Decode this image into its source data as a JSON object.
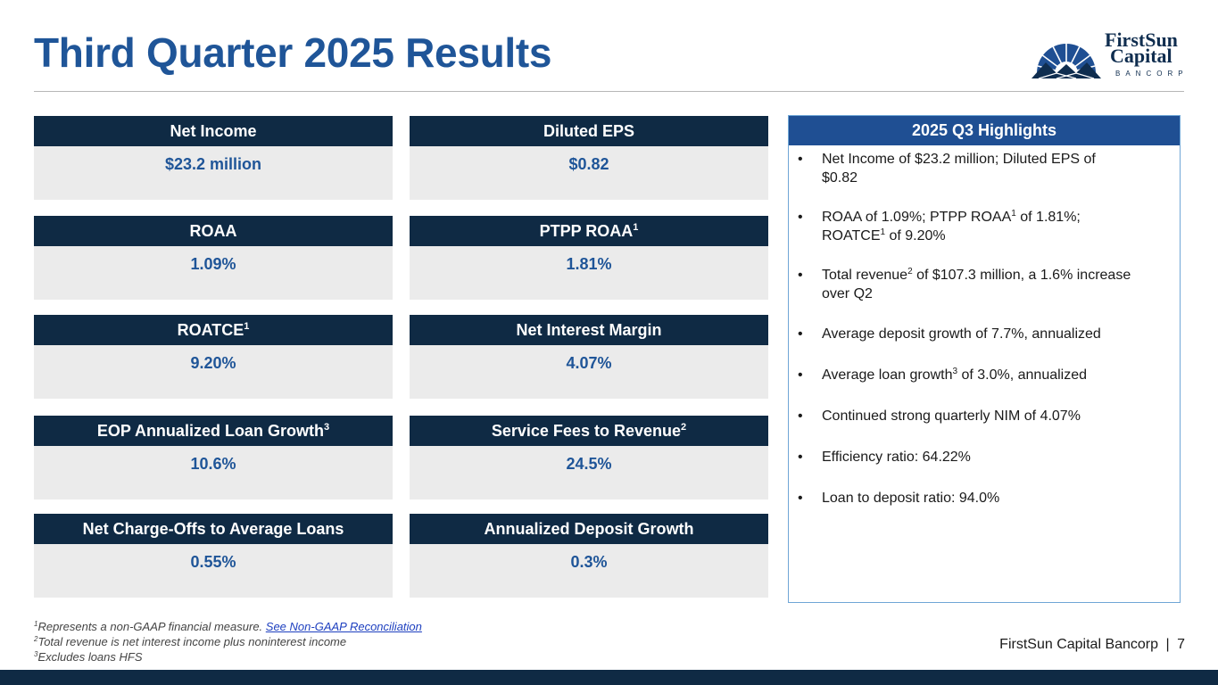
{
  "title": "Third Quarter 2025 Results",
  "logo": {
    "line1": "FirstSun",
    "line2": "Capital",
    "line3": "BANCORP"
  },
  "metrics": {
    "net_income": {
      "label": "Net Income",
      "value": "$23.2 million"
    },
    "diluted_eps": {
      "label": "Diluted EPS",
      "value": "$0.82"
    },
    "roaa": {
      "label": "ROAA",
      "value": "1.09%"
    },
    "ptpp_roaa": {
      "label": "PTPP ROAA",
      "sup": "1",
      "value": "1.81%"
    },
    "roatce": {
      "label": "ROATCE",
      "sup": "1",
      "value": "9.20%"
    },
    "nim": {
      "label": "Net Interest Margin",
      "value": "4.07%"
    },
    "eop_loan_growth": {
      "label": "EOP Annualized Loan Growth",
      "sup": "3",
      "value": "10.6%"
    },
    "service_fees": {
      "label": "Service Fees to Revenue",
      "sup": "2",
      "value": "24.5%"
    },
    "net_chargeoffs": {
      "label": "Net Charge-Offs to Average Loans",
      "value": "0.55%"
    },
    "deposit_growth": {
      "label": "Annualized Deposit Growth",
      "value": "0.3%"
    }
  },
  "highlights": {
    "title": "2025 Q3 Highlights",
    "bullet": "•",
    "b1": "Net Income of $23.2 million; Diluted EPS of $0.82",
    "b2": {
      "a": "ROAA of 1.09%; PTPP ROAA",
      "s1": "1",
      "b": " of 1.81%; ROATCE",
      "s2": "1",
      "c": " of 9.20%"
    },
    "b3": {
      "a": "Total revenue",
      "s1": "2",
      "b": " of $107.3 million, a 1.6% increase over Q2"
    },
    "b4": "Average deposit growth of 7.7%, annualized",
    "b5": {
      "a": "Average loan growth",
      "s1": "3",
      "b": " of 3.0%, annualized"
    },
    "b6": "Continued strong quarterly NIM of 4.07%",
    "b7": "Efficiency ratio: 64.22%",
    "b8": "Loan to deposit ratio: 94.0%"
  },
  "footnotes": {
    "f1": {
      "num": "1",
      "text": "Represents a non-GAAP financial measure. ",
      "link": "See Non-GAAP Reconciliation"
    },
    "f2": {
      "num": "2",
      "text": "Total revenue is net interest income plus noninterest income"
    },
    "f3": {
      "num": "3",
      "text": "Excludes loans HFS"
    }
  },
  "footer": {
    "brand": "FirstSun Capital Bancorp",
    "separator": "|",
    "page": "7"
  },
  "colors": {
    "title_blue": "#1f5598",
    "navy": "#0f2a44",
    "highlight_header": "#1f4f93",
    "card_bg": "#ebebeb"
  }
}
